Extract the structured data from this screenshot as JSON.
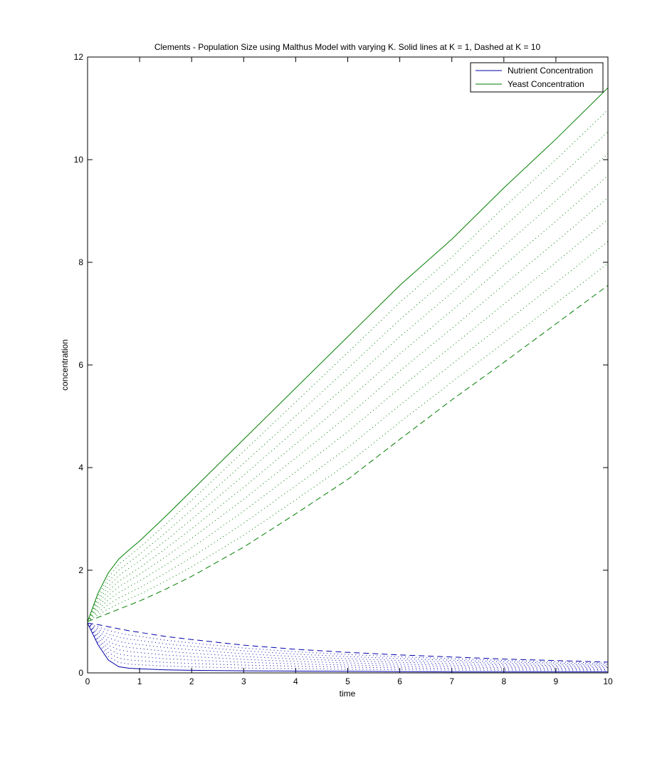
{
  "chart_data": {
    "type": "line",
    "title": "Clements - Population Size using Malthus Model with varying K. Solid lines at K = 1, Dashed at K = 10",
    "xlabel": "time",
    "ylabel": "concentration",
    "xlim": [
      0,
      10
    ],
    "ylim": [
      0,
      12
    ],
    "xticks": [
      "0",
      "1",
      "2",
      "3",
      "4",
      "5",
      "6",
      "7",
      "8",
      "9",
      "10"
    ],
    "yticks": [
      "0",
      "2",
      "4",
      "6",
      "8",
      "10",
      "12"
    ],
    "grid": false,
    "legend_position": "top-right",
    "legend": [
      "Nutrient Concentration",
      "Yeast Concentration"
    ],
    "colors": {
      "nutrient": "#0000aa",
      "yeast": "#007f00"
    },
    "x": [
      0,
      0.2,
      0.4,
      0.6,
      0.8,
      1,
      1.5,
      2,
      3,
      4,
      5,
      6,
      7,
      8,
      9,
      10
    ],
    "series": [
      {
        "name": "Nutrient Concentration",
        "values": [
          0.97,
          0.55,
          0.25,
          0.12,
          0.09,
          0.08,
          0.06,
          0.05,
          0.04,
          0.035,
          0.03,
          0.025,
          0.02,
          0.02,
          0.02,
          0.02
        ]
      },
      {
        "name": "Yeast Concentration",
        "values": [
          1.0,
          1.55,
          1.95,
          2.22,
          2.4,
          2.57,
          3.05,
          3.55,
          4.55,
          5.55,
          6.55,
          7.55,
          8.45,
          9.45,
          10.4,
          11.4
        ]
      },
      {
        "values": [
          0.97,
          0.94,
          0.9,
          0.86,
          0.82,
          0.79,
          0.71,
          0.65,
          0.54,
          0.46,
          0.4,
          0.35,
          0.31,
          0.27,
          0.24,
          0.21
        ]
      },
      {
        "values": [
          1.0,
          1.08,
          1.16,
          1.24,
          1.32,
          1.4,
          1.63,
          1.88,
          2.45,
          3.1,
          3.77,
          4.55,
          5.32,
          6.05,
          6.8,
          7.55
        ]
      }
    ]
  }
}
